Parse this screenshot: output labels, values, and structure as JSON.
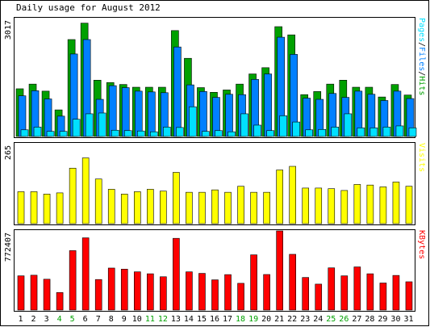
{
  "colors": {
    "background": "#ffffff",
    "plot_bg": "#ffffff",
    "frame": "#000000",
    "hits": "#00a000",
    "files": "#0080ff",
    "pages": "#00e0ff",
    "visits": "#ffff00",
    "kbytes": "#ff0000",
    "weekend_label": "#00a000",
    "weekday_label": "#000000"
  },
  "chart_data": {
    "type": "bar",
    "title": "Daily usage for August 2012",
    "categories": [
      "1",
      "2",
      "3",
      "4",
      "5",
      "6",
      "7",
      "8",
      "9",
      "10",
      "11",
      "12",
      "13",
      "14",
      "15",
      "16",
      "17",
      "18",
      "19",
      "20",
      "21",
      "22",
      "23",
      "24",
      "25",
      "26",
      "27",
      "28",
      "29",
      "30",
      "31"
    ],
    "weekend_days": [
      "4",
      "5",
      "11",
      "12",
      "18",
      "19",
      "25",
      "26"
    ],
    "panels": [
      {
        "name": "hits-files-pages",
        "ymax_label": "3017",
        "ylim": [
          0,
          3017
        ],
        "legend": [
          "Pages",
          "/",
          "Files",
          "/",
          "Hits"
        ],
        "series": [
          {
            "name": "Hits",
            "values": [
              1220,
              1340,
              1160,
              680,
              2480,
              2900,
              1440,
              1380,
              1330,
              1260,
              1260,
              1260,
              2710,
              2000,
              1250,
              1130,
              1190,
              1340,
              1600,
              1760,
              2810,
              2600,
              1070,
              1150,
              1340,
              1440,
              1260,
              1260,
              1010,
              1330,
              1060
            ]
          },
          {
            "name": "Files",
            "values": [
              1040,
              1170,
              960,
              520,
              2110,
              2480,
              950,
              1300,
              1250,
              1160,
              1140,
              1120,
              2290,
              1320,
              1150,
              1000,
              1080,
              1070,
              1460,
              1600,
              2540,
              2100,
              980,
              950,
              1100,
              1000,
              1160,
              1080,
              920,
              1160,
              970
            ]
          },
          {
            "name": "Pages",
            "values": [
              170,
              240,
              130,
              130,
              440,
              580,
              600,
              160,
              150,
              140,
              120,
              240,
              230,
              760,
              130,
              150,
              120,
              580,
              290,
              150,
              530,
              370,
              170,
              180,
              240,
              580,
              220,
              220,
              240,
              270,
              220
            ]
          }
        ]
      },
      {
        "name": "visits",
        "ymax_label": "265",
        "ylim": [
          0,
          265
        ],
        "legend": [
          "Visits"
        ],
        "series": [
          {
            "name": "Visits",
            "values": [
              106,
              106,
              98,
              102,
              184,
              218,
              148,
              114,
              98,
              106,
              114,
              108,
              170,
              104,
              104,
              112,
              104,
              124,
              104,
              104,
              178,
              190,
              118,
              118,
              116,
              110,
              130,
              128,
              122,
              138,
              124
            ]
          }
        ]
      },
      {
        "name": "kbytes",
        "ymax_label": "772407",
        "ylim": [
          0,
          772407
        ],
        "legend": [
          "KBytes"
        ],
        "series": [
          {
            "name": "KBytes",
            "values": [
              334000,
              340000,
              301000,
              171000,
              580000,
              705000,
              298000,
              410000,
              399000,
              373000,
              354000,
              325000,
              700000,
              373000,
              358000,
              295000,
              346000,
              261000,
              539000,
              347000,
              772407,
              544000,
              318000,
              253000,
              412000,
              334000,
              421000,
              354000,
              264000,
              338000,
              276000
            ]
          }
        ]
      }
    ]
  }
}
